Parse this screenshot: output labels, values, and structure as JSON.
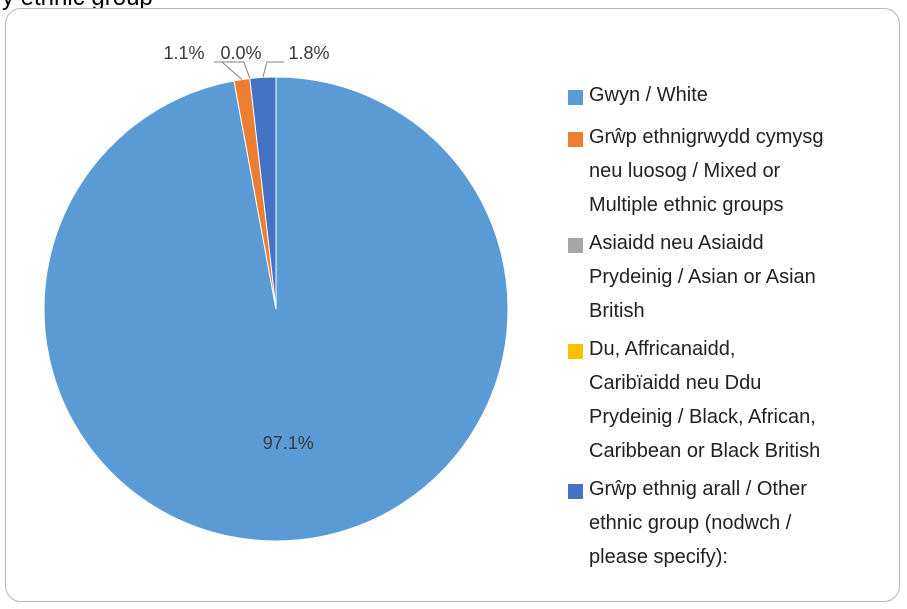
{
  "header": {
    "title_fragment": "y ethnic group"
  },
  "chart_data": {
    "type": "pie",
    "categories": [
      "Gwyn / White",
      "Grŵp ethnigrwydd cymysg neu luosog / Mixed or Multiple ethnic groups",
      "Asiaidd neu Asiaidd Prydeinig / Asian or Asian British",
      "Du, Affricanaidd, Caribïaidd neu Ddu Prydeinig / Black, African, Caribbean or Black British",
      "Grŵp ethnig arall  / Other ethnic group (nodwch / please specify):"
    ],
    "values": [
      97.1,
      1.1,
      0.0,
      0.0,
      1.8
    ],
    "data_labels": [
      "97.1%",
      "1.1%",
      "0.0%",
      "",
      "1.8%"
    ],
    "colors": [
      "#5b9bd5",
      "#ed7d31",
      "#a5a5a5",
      "#ffc000",
      "#4472c4"
    ],
    "start_angle_deg": 0,
    "direction": "clockwise",
    "legend_position": "right"
  },
  "legend": {
    "items": [
      {
        "lines": [
          "Gwyn / White"
        ],
        "color": "#5b9bd5"
      },
      {
        "lines": [
          "Grŵp ethnigrwydd cymysg",
          "neu luosog / Mixed or",
          "Multiple ethnic groups"
        ],
        "color": "#ed7d31"
      },
      {
        "lines": [
          "Asiaidd neu Asiaidd",
          "Prydeinig / Asian or Asian",
          "British"
        ],
        "color": "#a5a5a5"
      },
      {
        "lines": [
          "Du, Affricanaidd,",
          "Caribïaidd neu Ddu",
          "Prydeinig / Black, African,",
          "Caribbean or Black British"
        ],
        "color": "#ffc000"
      },
      {
        "lines": [
          "Grŵp ethnig arall  / Other",
          "ethnic group (nodwch /",
          "please specify):"
        ],
        "color": "#4472c4"
      }
    ]
  }
}
